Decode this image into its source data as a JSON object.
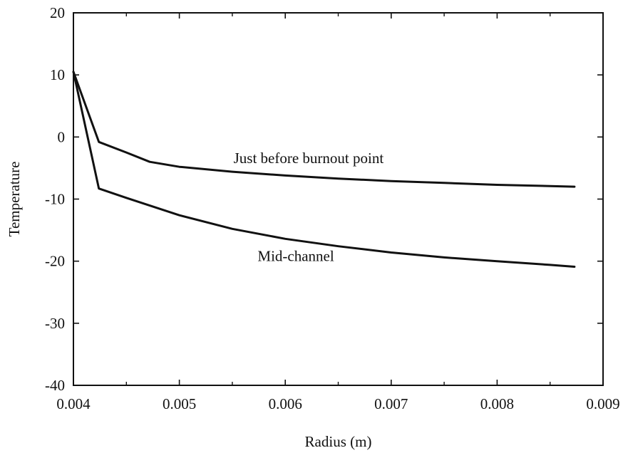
{
  "chart_data": {
    "type": "line",
    "title": "",
    "xlabel": "Radius (m)",
    "ylabel": "Temperature",
    "xlim": [
      0.004,
      0.009
    ],
    "ylim": [
      -40,
      20
    ],
    "x_ticks": [
      0.004,
      0.005,
      0.006,
      0.007,
      0.008,
      0.009
    ],
    "x_tick_labels": [
      "0.004",
      "0.005",
      "0.006",
      "0.007",
      "0.008",
      "0.009"
    ],
    "y_ticks": [
      -40,
      -30,
      -20,
      -10,
      0,
      10,
      20
    ],
    "y_tick_labels": [
      "-40",
      "-30",
      "-20",
      "-10",
      "0",
      "10",
      "20"
    ],
    "grid": false,
    "legend": false,
    "line_color": "#111111",
    "series": [
      {
        "x": [
          0.004,
          0.00424,
          0.0045,
          0.00472,
          0.005,
          0.0055,
          0.006,
          0.0065,
          0.007,
          0.0075,
          0.008,
          0.0085,
          0.00873
        ],
        "y": [
          10.5,
          -0.8,
          -2.5,
          -4.0,
          -4.8,
          -5.6,
          -6.2,
          -6.7,
          -7.1,
          -7.4,
          -7.7,
          -7.9,
          -8.0
        ]
      },
      {
        "x": [
          0.004,
          0.00424,
          0.0045,
          0.005,
          0.0055,
          0.006,
          0.0065,
          0.007,
          0.0075,
          0.008,
          0.0085,
          0.00873
        ],
        "y": [
          10.5,
          -8.3,
          -9.8,
          -12.6,
          -14.8,
          -16.4,
          -17.6,
          -18.6,
          -19.4,
          -20.0,
          -20.6,
          -20.9
        ]
      }
    ],
    "annotations": [
      {
        "text": "Just before burnout point",
        "x": 0.00622,
        "y": -3.4
      },
      {
        "text": "Mid-channel",
        "x": 0.0061,
        "y": -19.2
      }
    ]
  }
}
